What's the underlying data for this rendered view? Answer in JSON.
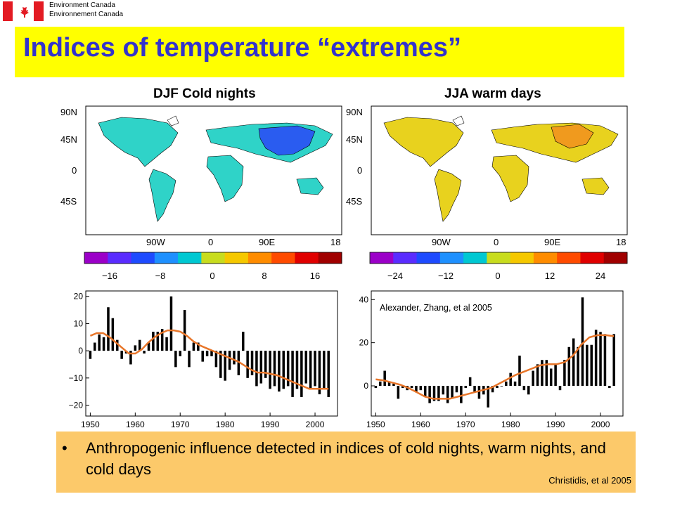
{
  "header": {
    "dept_line1": "Environment Canada",
    "dept_line2": "Environnement Canada",
    "flag_colors": {
      "red": "#e31b23",
      "white": "#ffffff"
    }
  },
  "title": "Indices of temperature “extremes”",
  "colors": {
    "title_bg": "#ffff00",
    "title_text": "#3333cc",
    "footer_bg": "#fcc96a",
    "trend_line": "#e8762a",
    "bar": "#000000"
  },
  "maps": [
    {
      "title": "DJF Cold nights",
      "lat_labels": [
        "90N",
        "45N",
        "0",
        "45S"
      ],
      "lon_labels": [
        "90W",
        "0",
        "90E",
        "18"
      ],
      "colorbar_ticks": [
        "−16",
        "−8",
        "0",
        "8",
        "16"
      ],
      "colorbar_colors": [
        "#9b00c8",
        "#5a2cff",
        "#1e4bff",
        "#1e90ff",
        "#00c8d2",
        "#c8dc1e",
        "#f5c800",
        "#ff8c00",
        "#ff4b00",
        "#e00000",
        "#a00000"
      ],
      "dominant_fill": "#2fd3c8",
      "accent_fill": "#2a5cf0"
    },
    {
      "title": "JJA warm days",
      "lat_labels": [
        "90N",
        "45N",
        "0",
        "45S"
      ],
      "lon_labels": [
        "90W",
        "0",
        "90E",
        "18"
      ],
      "colorbar_ticks": [
        "−24",
        "−12",
        "0",
        "12",
        "24"
      ],
      "colorbar_colors": [
        "#9b00c8",
        "#5a2cff",
        "#1e4bff",
        "#1e90ff",
        "#00c8d2",
        "#c8dc1e",
        "#f5c800",
        "#ff8c00",
        "#ff4b00",
        "#e00000",
        "#a00000"
      ],
      "dominant_fill": "#e8d21e",
      "accent_fill": "#f09a1e"
    }
  ],
  "chart_data": [
    {
      "type": "bar",
      "title": "",
      "xlabel": "",
      "ylabel": "",
      "xlim": [
        1949,
        2005
      ],
      "ylim": [
        -24,
        22
      ],
      "x_ticks": [
        "1950",
        "1960",
        "1970",
        "1980",
        "1990",
        "2000"
      ],
      "y_ticks": [
        "20",
        "10",
        "0",
        "−10",
        "−20"
      ],
      "x": [
        1950,
        1951,
        1952,
        1953,
        1954,
        1955,
        1956,
        1957,
        1958,
        1959,
        1960,
        1961,
        1962,
        1963,
        1964,
        1965,
        1966,
        1967,
        1968,
        1969,
        1970,
        1971,
        1972,
        1973,
        1974,
        1975,
        1976,
        1977,
        1978,
        1979,
        1980,
        1981,
        1982,
        1983,
        1984,
        1985,
        1986,
        1987,
        1988,
        1989,
        1990,
        1991,
        1992,
        1993,
        1994,
        1995,
        1996,
        1997,
        1998,
        1999,
        2000,
        2001,
        2002,
        2003
      ],
      "values": [
        -3,
        3,
        6,
        5,
        16,
        12,
        4,
        -3,
        -1,
        -5,
        2,
        4,
        -1,
        3,
        7,
        7,
        8,
        5,
        20,
        -6,
        -2,
        15,
        -6,
        3,
        3,
        -4,
        -2,
        -2,
        -6,
        -10,
        -11,
        -7,
        -5,
        -9,
        7,
        -10,
        -9,
        -13,
        -12,
        -10,
        -14,
        -13,
        -15,
        -14,
        -13,
        -17,
        -14,
        -17,
        -12,
        -14,
        -13,
        -16,
        -14,
        -17
      ],
      "trend": [
        5.5,
        6.5,
        6.5,
        5,
        3,
        1,
        -1,
        -1,
        0.5,
        3,
        5,
        6.5,
        7.5,
        7.5,
        7,
        5.5,
        3.5,
        2,
        1,
        0,
        -1,
        -2,
        -3,
        -4,
        -5.5,
        -7,
        -8,
        -8,
        -8.5,
        -9,
        -10,
        -11,
        -12,
        -13,
        -14,
        -14,
        -14,
        -14
      ]
    },
    {
      "type": "bar",
      "title": "",
      "xlabel": "",
      "ylabel": "",
      "annotation": "Alexander, Zhang, et al 2005",
      "xlim": [
        1949,
        2005
      ],
      "ylim": [
        -14,
        44
      ],
      "x_ticks": [
        "1950",
        "1960",
        "1970",
        "1980",
        "1990",
        "2000"
      ],
      "y_ticks": [
        "40",
        "20",
        "0"
      ],
      "x": [
        1950,
        1951,
        1952,
        1953,
        1954,
        1955,
        1956,
        1957,
        1958,
        1959,
        1960,
        1961,
        1962,
        1963,
        1964,
        1965,
        1966,
        1967,
        1968,
        1969,
        1970,
        1971,
        1972,
        1973,
        1974,
        1975,
        1976,
        1977,
        1978,
        1979,
        1980,
        1981,
        1982,
        1983,
        1984,
        1985,
        1986,
        1987,
        1988,
        1989,
        1990,
        1991,
        1992,
        1993,
        1994,
        1995,
        1996,
        1997,
        1998,
        1999,
        2000,
        2001,
        2002,
        2003
      ],
      "values": [
        -1,
        2,
        7,
        2,
        1,
        -6,
        -1,
        -2,
        -1,
        -3,
        -2,
        -5,
        -8,
        -7,
        -7,
        -4,
        -8,
        -6,
        -3,
        -8,
        -1,
        4,
        -3,
        -6,
        -4,
        -10,
        -3,
        -1,
        0,
        2,
        6,
        2,
        14,
        -2,
        -4,
        7,
        10,
        12,
        12,
        8,
        10,
        -2,
        12,
        18,
        22,
        18,
        41,
        19,
        19,
        26,
        25,
        24,
        -1,
        24
      ],
      "trend": [
        3,
        2.5,
        1.5,
        0.5,
        -1,
        -3,
        -5,
        -6,
        -6,
        -6,
        -5,
        -4,
        -3,
        -2,
        -1,
        1,
        3,
        5,
        6.5,
        8,
        9.5,
        10,
        10,
        11,
        14,
        19,
        22.5,
        23.5,
        23.5,
        23
      ]
    }
  ],
  "footer": {
    "bullet_text": "Anthropogenic influence detected in indices of cold nights, warm nights, and cold days",
    "credit": "Christidis, et al 2005"
  }
}
